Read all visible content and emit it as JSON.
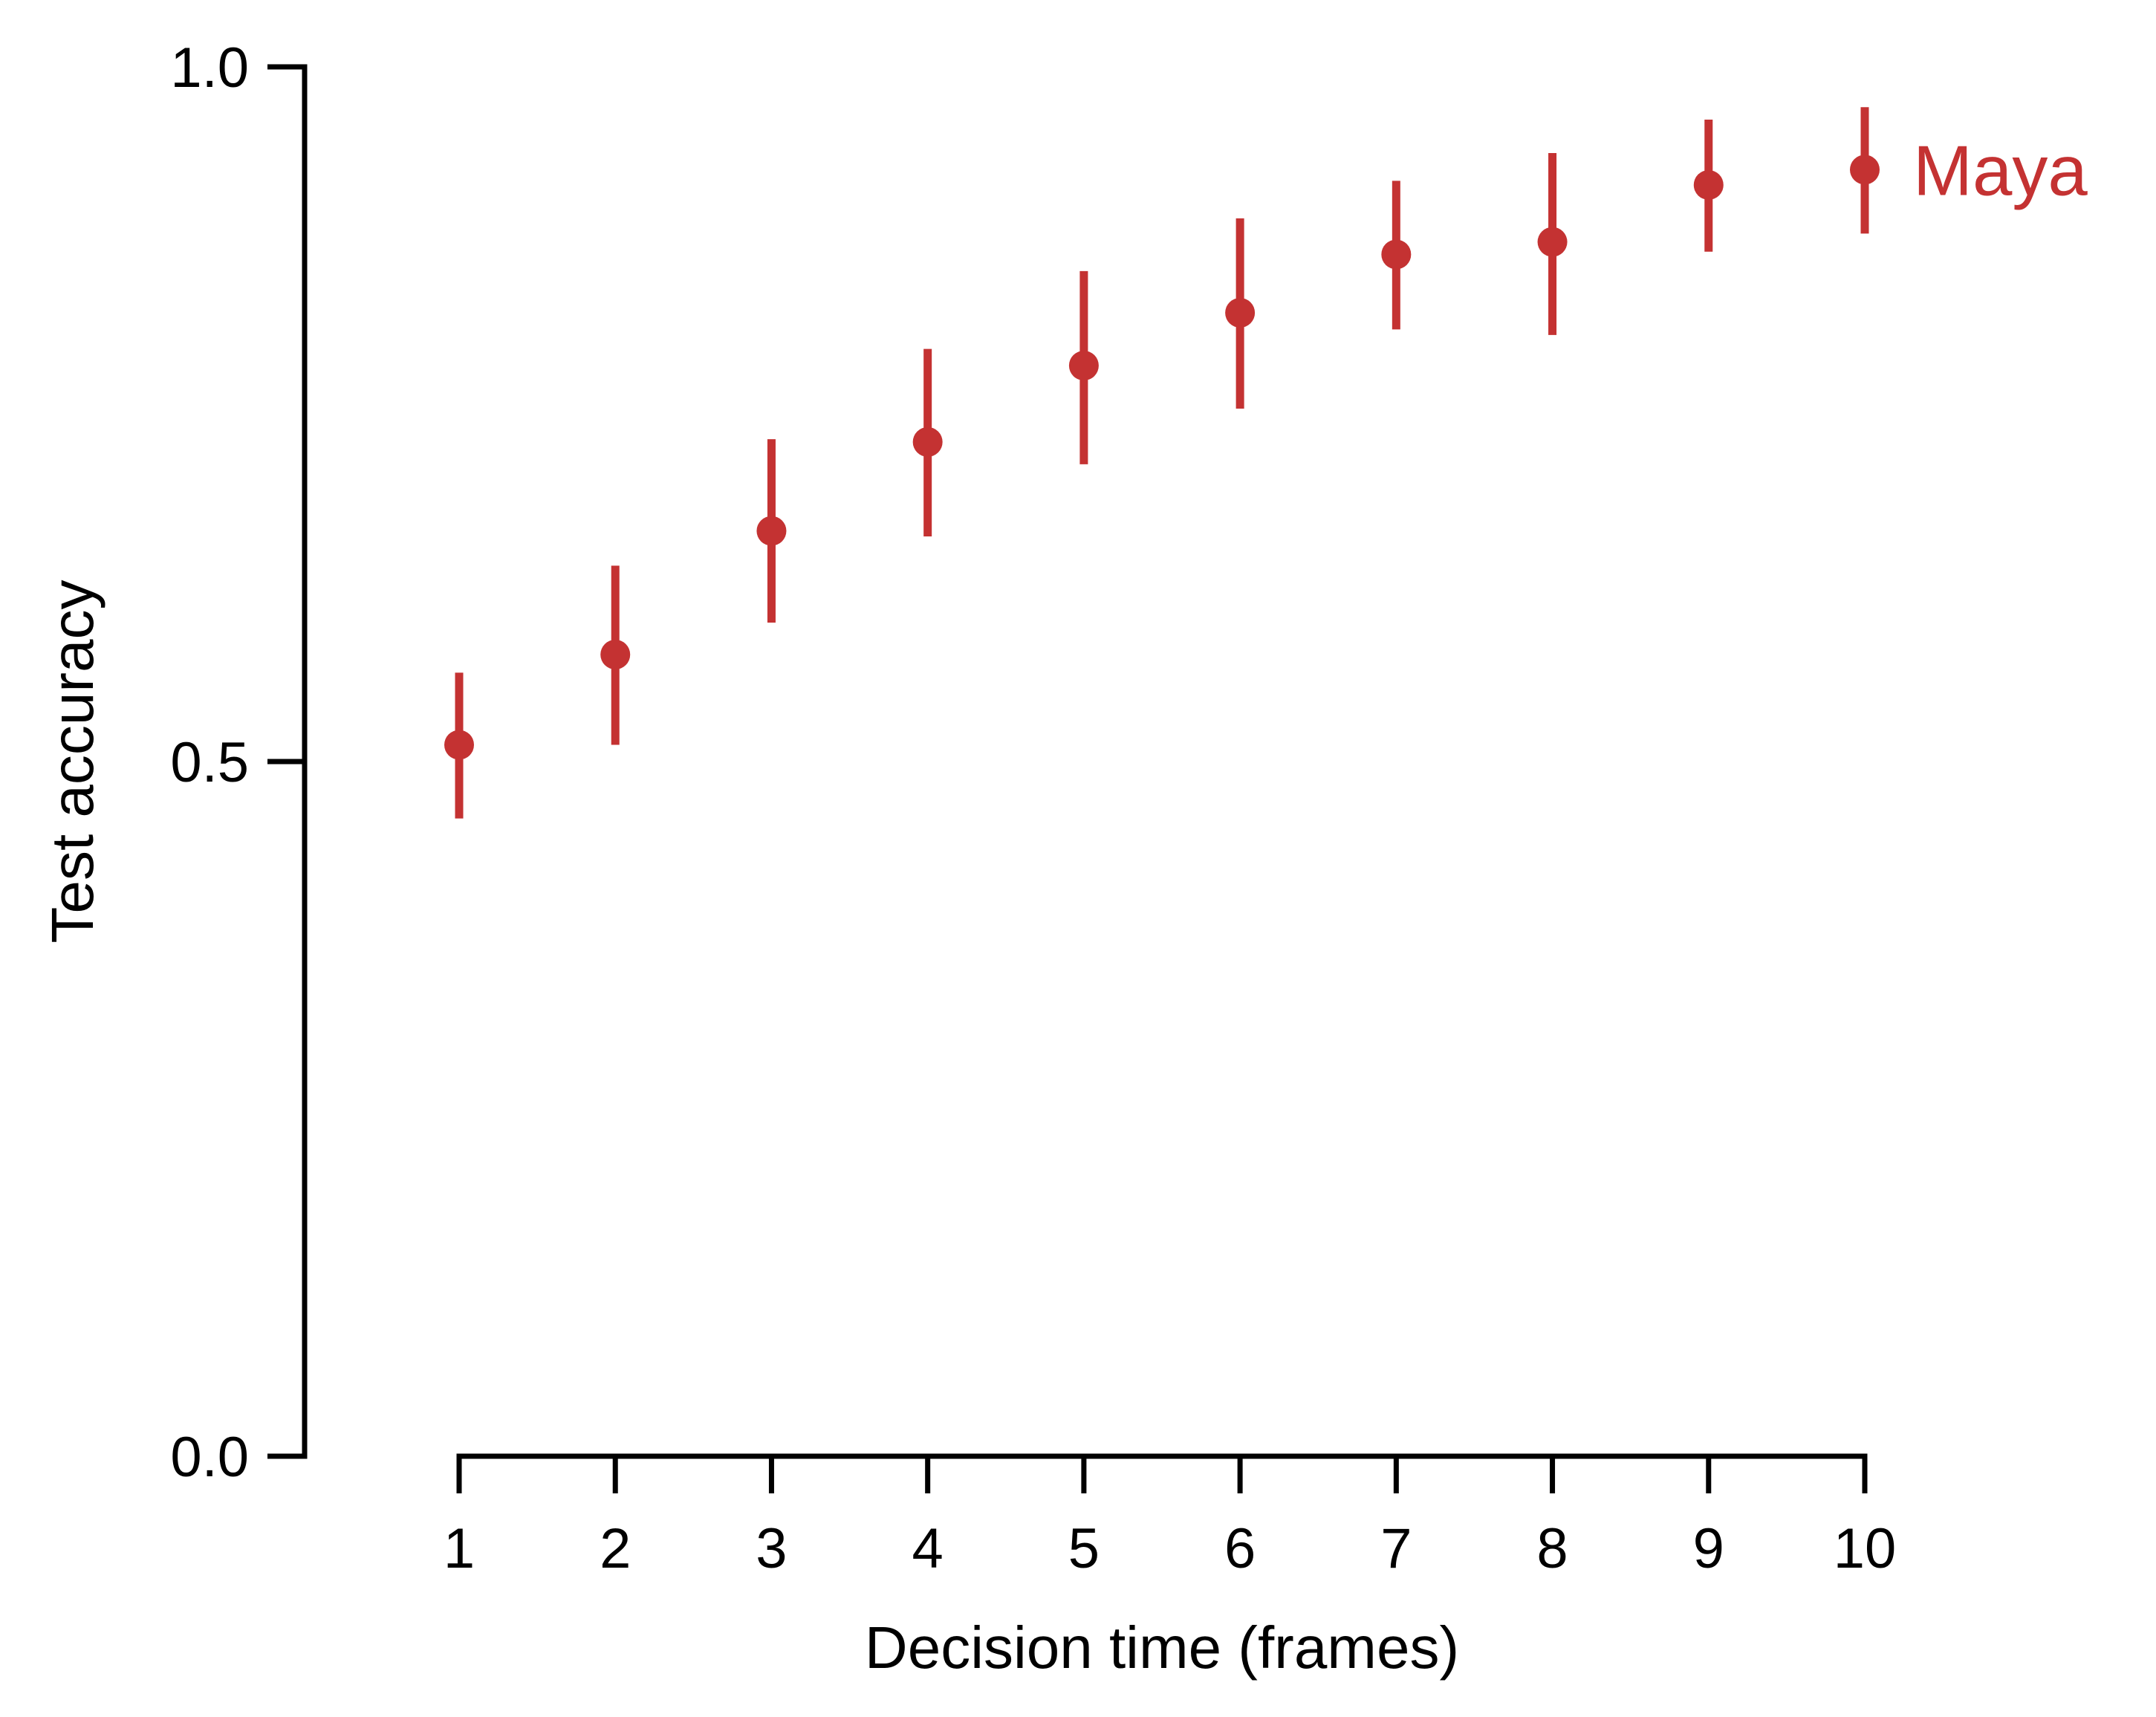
{
  "chart_data": {
    "type": "scatter",
    "title": "",
    "xlabel": "Decision time (frames)",
    "ylabel": "Test accuracy",
    "x": [
      1,
      2,
      3,
      4,
      5,
      6,
      7,
      8,
      9,
      10
    ],
    "x_tick_labels": [
      "1",
      "2",
      "3",
      "4",
      "5",
      "6",
      "7",
      "8",
      "9",
      "10"
    ],
    "y_ticks": [
      0.0,
      0.5,
      1.0
    ],
    "y_tick_labels": [
      "0.0",
      "0.5",
      "1.0"
    ],
    "xlim": [
      1,
      10
    ],
    "ylim": [
      0,
      1
    ],
    "grid": false,
    "series": [
      {
        "name": "Maya",
        "color": "#c43232",
        "values": [
          0.512,
          0.577,
          0.666,
          0.73,
          0.785,
          0.823,
          0.865,
          0.874,
          0.915,
          0.926
        ],
        "error_lower": [
          0.459,
          0.512,
          0.6,
          0.662,
          0.714,
          0.754,
          0.811,
          0.807,
          0.867,
          0.88
        ],
        "error_upper": [
          0.564,
          0.641,
          0.732,
          0.797,
          0.853,
          0.891,
          0.918,
          0.938,
          0.962,
          0.971
        ]
      }
    ]
  }
}
